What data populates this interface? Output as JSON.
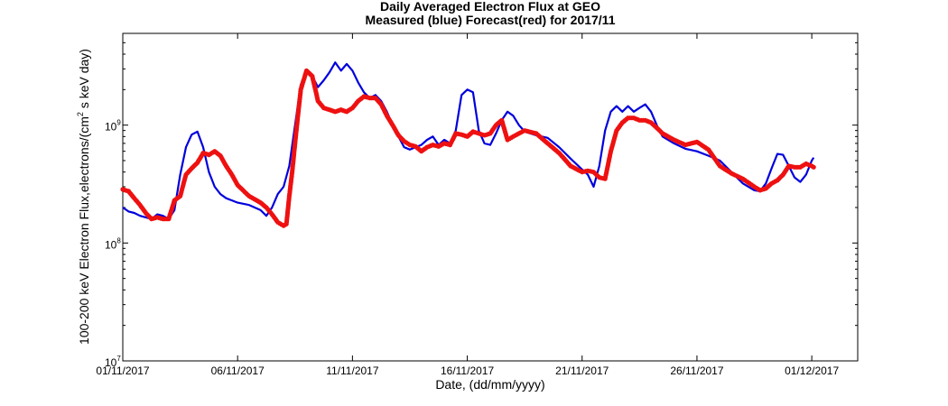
{
  "chart_data": {
    "type": "line",
    "title": "Daily Averaged Electron Flux at GEO",
    "subtitle": "Measured (blue) Forecast(red) for 2017/11",
    "xlabel": "Date, (dd/mm/yyyy)",
    "ylabel_prefix": "100-200 keV Electron Flux,electrons/(cm",
    "ylabel_sup": "2",
    "ylabel_suffix": " s keV day)",
    "y_scale": "log",
    "ylim": [
      10000000.0,
      6000000000.0
    ],
    "xlim": [
      "2017-11-01",
      "2017-12-03"
    ],
    "grid": false,
    "x_ticks": [
      {
        "date": "2017-11-01",
        "label": "01/11/2017"
      },
      {
        "date": "2017-11-06",
        "label": "06/11/2017"
      },
      {
        "date": "2017-11-11",
        "label": "11/11/2017"
      },
      {
        "date": "2017-11-16",
        "label": "16/11/2017"
      },
      {
        "date": "2017-11-21",
        "label": "21/11/2017"
      },
      {
        "date": "2017-11-26",
        "label": "26/11/2017"
      },
      {
        "date": "2017-12-01",
        "label": "01/12/2017"
      }
    ],
    "y_ticks": [
      {
        "value": 10000000.0,
        "base": "10",
        "exp": "7"
      },
      {
        "value": 100000000.0,
        "base": "10",
        "exp": "8"
      },
      {
        "value": 1000000000.0,
        "base": "10",
        "exp": "9"
      }
    ],
    "series": [
      {
        "color": "#0000dd",
        "style": "line",
        "points": [
          [
            "2017-11-01T00:00",
            200000000.0
          ],
          [
            "2017-11-01T06:00",
            185000000.0
          ],
          [
            "2017-11-01T12:00",
            180000000.0
          ],
          [
            "2017-11-01T18:00",
            170000000.0
          ],
          [
            "2017-11-02T00:00",
            165000000.0
          ],
          [
            "2017-11-02T06:00",
            160000000.0
          ],
          [
            "2017-11-02T12:00",
            175000000.0
          ],
          [
            "2017-11-02T18:00",
            170000000.0
          ],
          [
            "2017-11-03T00:00",
            160000000.0
          ],
          [
            "2017-11-03T06:00",
            190000000.0
          ],
          [
            "2017-11-03T12:00",
            380000000.0
          ],
          [
            "2017-11-03T18:00",
            650000000.0
          ],
          [
            "2017-11-04T00:00",
            830000000.0
          ],
          [
            "2017-11-04T06:00",
            880000000.0
          ],
          [
            "2017-11-04T12:00",
            650000000.0
          ],
          [
            "2017-11-04T18:00",
            400000000.0
          ],
          [
            "2017-11-05T00:00",
            300000000.0
          ],
          [
            "2017-11-05T06:00",
            260000000.0
          ],
          [
            "2017-11-05T12:00",
            240000000.0
          ],
          [
            "2017-11-05T18:00",
            230000000.0
          ],
          [
            "2017-11-06T00:00",
            220000000.0
          ],
          [
            "2017-11-06T12:00",
            210000000.0
          ],
          [
            "2017-11-07T00:00",
            190000000.0
          ],
          [
            "2017-11-07T06:00",
            170000000.0
          ],
          [
            "2017-11-07T12:00",
            200000000.0
          ],
          [
            "2017-11-07T18:00",
            260000000.0
          ],
          [
            "2017-11-08T00:00",
            300000000.0
          ],
          [
            "2017-11-08T06:00",
            450000000.0
          ],
          [
            "2017-11-08T12:00",
            1000000000.0
          ],
          [
            "2017-11-08T18:00",
            2200000000.0
          ],
          [
            "2017-11-09T00:00",
            2900000000.0
          ],
          [
            "2017-11-09T06:00",
            2600000000.0
          ],
          [
            "2017-11-09T12:00",
            2100000000.0
          ],
          [
            "2017-11-09T18:00",
            2400000000.0
          ],
          [
            "2017-11-10T00:00",
            2800000000.0
          ],
          [
            "2017-11-10T06:00",
            3400000000.0
          ],
          [
            "2017-11-10T12:00",
            2900000000.0
          ],
          [
            "2017-11-10T18:00",
            3300000000.0
          ],
          [
            "2017-11-11T00:00",
            2900000000.0
          ],
          [
            "2017-11-11T06:00",
            2300000000.0
          ],
          [
            "2017-11-11T12:00",
            1900000000.0
          ],
          [
            "2017-11-11T18:00",
            1700000000.0
          ],
          [
            "2017-11-12T00:00",
            1800000000.0
          ],
          [
            "2017-11-12T06:00",
            1600000000.0
          ],
          [
            "2017-11-12T12:00",
            1300000000.0
          ],
          [
            "2017-11-12T18:00",
            1000000000.0
          ],
          [
            "2017-11-13T00:00",
            800000000.0
          ],
          [
            "2017-11-13T06:00",
            650000000.0
          ],
          [
            "2017-11-13T12:00",
            620000000.0
          ],
          [
            "2017-11-13T18:00",
            650000000.0
          ],
          [
            "2017-11-14T00:00",
            680000000.0
          ],
          [
            "2017-11-14T06:00",
            750000000.0
          ],
          [
            "2017-11-14T12:00",
            800000000.0
          ],
          [
            "2017-11-14T18:00",
            680000000.0
          ],
          [
            "2017-11-15T00:00",
            750000000.0
          ],
          [
            "2017-11-15T06:00",
            700000000.0
          ],
          [
            "2017-11-15T12:00",
            900000000.0
          ],
          [
            "2017-11-15T18:00",
            1800000000.0
          ],
          [
            "2017-11-16T00:00",
            2000000000.0
          ],
          [
            "2017-11-16T06:00",
            1900000000.0
          ],
          [
            "2017-11-16T12:00",
            900000000.0
          ],
          [
            "2017-11-16T18:00",
            700000000.0
          ],
          [
            "2017-11-17T00:00",
            680000000.0
          ],
          [
            "2017-11-17T06:00",
            850000000.0
          ],
          [
            "2017-11-17T12:00",
            1100000000.0
          ],
          [
            "2017-11-17T18:00",
            1300000000.0
          ],
          [
            "2017-11-18T00:00",
            1200000000.0
          ],
          [
            "2017-11-18T06:00",
            1000000000.0
          ],
          [
            "2017-11-18T12:00",
            880000000.0
          ],
          [
            "2017-11-19T00:00",
            820000000.0
          ],
          [
            "2017-11-19T12:00",
            780000000.0
          ],
          [
            "2017-11-20T00:00",
            650000000.0
          ],
          [
            "2017-11-20T12:00",
            520000000.0
          ],
          [
            "2017-11-21T00:00",
            420000000.0
          ],
          [
            "2017-11-21T06:00",
            380000000.0
          ],
          [
            "2017-11-21T12:00",
            300000000.0
          ],
          [
            "2017-11-21T18:00",
            450000000.0
          ],
          [
            "2017-11-22T00:00",
            900000000.0
          ],
          [
            "2017-11-22T06:00",
            1300000000.0
          ],
          [
            "2017-11-22T12:00",
            1450000000.0
          ],
          [
            "2017-11-22T18:00",
            1300000000.0
          ],
          [
            "2017-11-23T00:00",
            1450000000.0
          ],
          [
            "2017-11-23T06:00",
            1300000000.0
          ],
          [
            "2017-11-23T12:00",
            1400000000.0
          ],
          [
            "2017-11-23T18:00",
            1500000000.0
          ],
          [
            "2017-11-24T00:00",
            1300000000.0
          ],
          [
            "2017-11-24T06:00",
            1000000000.0
          ],
          [
            "2017-11-24T12:00",
            800000000.0
          ],
          [
            "2017-11-25T00:00",
            700000000.0
          ],
          [
            "2017-11-25T12:00",
            630000000.0
          ],
          [
            "2017-11-26T00:00",
            600000000.0
          ],
          [
            "2017-11-26T12:00",
            550000000.0
          ],
          [
            "2017-11-27T00:00",
            500000000.0
          ],
          [
            "2017-11-27T12:00",
            400000000.0
          ],
          [
            "2017-11-28T00:00",
            320000000.0
          ],
          [
            "2017-11-28T12:00",
            280000000.0
          ],
          [
            "2017-11-28T18:00",
            275000000.0
          ],
          [
            "2017-11-29T00:00",
            320000000.0
          ],
          [
            "2017-11-29T06:00",
            430000000.0
          ],
          [
            "2017-11-29T12:00",
            570000000.0
          ],
          [
            "2017-11-29T18:00",
            560000000.0
          ],
          [
            "2017-11-30T00:00",
            450000000.0
          ],
          [
            "2017-11-30T06:00",
            360000000.0
          ],
          [
            "2017-11-30T12:00",
            330000000.0
          ],
          [
            "2017-11-30T18:00",
            380000000.0
          ],
          [
            "2017-12-01T00:00",
            500000000.0
          ],
          [
            "2017-12-01T02:00",
            530000000.0
          ]
        ]
      },
      {
        "color": "#ee1111",
        "style": "dots",
        "points": [
          [
            "2017-11-01T00:00",
            285000000.0
          ],
          [
            "2017-11-01T06:00",
            275000000.0
          ],
          [
            "2017-11-01T12:00",
            240000000.0
          ],
          [
            "2017-11-01T18:00",
            210000000.0
          ],
          [
            "2017-11-02T00:00",
            180000000.0
          ],
          [
            "2017-11-02T06:00",
            160000000.0
          ],
          [
            "2017-11-02T12:00",
            165000000.0
          ],
          [
            "2017-11-02T18:00",
            160000000.0
          ],
          [
            "2017-11-03T00:00",
            160000000.0
          ],
          [
            "2017-11-03T06:00",
            230000000.0
          ],
          [
            "2017-11-03T12:00",
            250000000.0
          ],
          [
            "2017-11-03T18:00",
            380000000.0
          ],
          [
            "2017-11-04T00:00",
            430000000.0
          ],
          [
            "2017-11-04T06:00",
            480000000.0
          ],
          [
            "2017-11-04T12:00",
            580000000.0
          ],
          [
            "2017-11-04T18:00",
            560000000.0
          ],
          [
            "2017-11-05T00:00",
            600000000.0
          ],
          [
            "2017-11-05T06:00",
            550000000.0
          ],
          [
            "2017-11-05T12:00",
            450000000.0
          ],
          [
            "2017-11-05T18:00",
            380000000.0
          ],
          [
            "2017-11-06T00:00",
            310000000.0
          ],
          [
            "2017-11-06T12:00",
            250000000.0
          ],
          [
            "2017-11-07T00:00",
            220000000.0
          ],
          [
            "2017-11-07T06:00",
            200000000.0
          ],
          [
            "2017-11-07T12:00",
            175000000.0
          ],
          [
            "2017-11-07T18:00",
            150000000.0
          ],
          [
            "2017-11-08T00:00",
            140000000.0
          ],
          [
            "2017-11-08T03:00",
            145000000.0
          ],
          [
            "2017-11-08T06:00",
            250000000.0
          ],
          [
            "2017-11-08T09:00",
            400000000.0
          ],
          [
            "2017-11-08T12:00",
            700000000.0
          ],
          [
            "2017-11-08T15:00",
            1200000000.0
          ],
          [
            "2017-11-08T18:00",
            2000000000.0
          ],
          [
            "2017-11-09T00:00",
            2900000000.0
          ],
          [
            "2017-11-09T06:00",
            2600000000.0
          ],
          [
            "2017-11-09T12:00",
            1600000000.0
          ],
          [
            "2017-11-09T18:00",
            1400000000.0
          ],
          [
            "2017-11-10T00:00",
            1350000000.0
          ],
          [
            "2017-11-10T06:00",
            1300000000.0
          ],
          [
            "2017-11-10T12:00",
            1350000000.0
          ],
          [
            "2017-11-10T18:00",
            1300000000.0
          ],
          [
            "2017-11-11T00:00",
            1400000000.0
          ],
          [
            "2017-11-11T06:00",
            1600000000.0
          ],
          [
            "2017-11-11T12:00",
            1750000000.0
          ],
          [
            "2017-11-11T18:00",
            1700000000.0
          ],
          [
            "2017-11-12T00:00",
            1700000000.0
          ],
          [
            "2017-11-12T06:00",
            1500000000.0
          ],
          [
            "2017-11-12T12:00",
            1200000000.0
          ],
          [
            "2017-11-12T18:00",
            1000000000.0
          ],
          [
            "2017-11-13T00:00",
            820000000.0
          ],
          [
            "2017-11-13T06:00",
            730000000.0
          ],
          [
            "2017-11-13T12:00",
            680000000.0
          ],
          [
            "2017-11-13T18:00",
            660000000.0
          ],
          [
            "2017-11-14T00:00",
            600000000.0
          ],
          [
            "2017-11-14T06:00",
            650000000.0
          ],
          [
            "2017-11-14T12:00",
            680000000.0
          ],
          [
            "2017-11-14T18:00",
            660000000.0
          ],
          [
            "2017-11-15T00:00",
            700000000.0
          ],
          [
            "2017-11-15T06:00",
            680000000.0
          ],
          [
            "2017-11-15T12:00",
            850000000.0
          ],
          [
            "2017-11-15T18:00",
            830000000.0
          ],
          [
            "2017-11-16T00:00",
            800000000.0
          ],
          [
            "2017-11-16T06:00",
            880000000.0
          ],
          [
            "2017-11-16T12:00",
            850000000.0
          ],
          [
            "2017-11-16T18:00",
            820000000.0
          ],
          [
            "2017-11-17T00:00",
            850000000.0
          ],
          [
            "2017-11-17T06:00",
            1000000000.0
          ],
          [
            "2017-11-17T12:00",
            1100000000.0
          ],
          [
            "2017-11-17T18:00",
            750000000.0
          ],
          [
            "2017-11-18T00:00",
            800000000.0
          ],
          [
            "2017-11-18T06:00",
            850000000.0
          ],
          [
            "2017-11-18T12:00",
            900000000.0
          ],
          [
            "2017-11-19T00:00",
            850000000.0
          ],
          [
            "2017-11-19T12:00",
            700000000.0
          ],
          [
            "2017-11-20T00:00",
            580000000.0
          ],
          [
            "2017-11-20T12:00",
            450000000.0
          ],
          [
            "2017-11-21T00:00",
            400000000.0
          ],
          [
            "2017-11-21T06:00",
            410000000.0
          ],
          [
            "2017-11-21T12:00",
            400000000.0
          ],
          [
            "2017-11-21T18:00",
            360000000.0
          ],
          [
            "2017-11-22T00:00",
            350000000.0
          ],
          [
            "2017-11-22T06:00",
            600000000.0
          ],
          [
            "2017-11-22T12:00",
            900000000.0
          ],
          [
            "2017-11-22T18:00",
            1050000000.0
          ],
          [
            "2017-11-23T00:00",
            1150000000.0
          ],
          [
            "2017-11-23T06:00",
            1150000000.0
          ],
          [
            "2017-11-23T12:00",
            1100000000.0
          ],
          [
            "2017-11-23T18:00",
            1100000000.0
          ],
          [
            "2017-11-24T00:00",
            1050000000.0
          ],
          [
            "2017-11-24T06:00",
            950000000.0
          ],
          [
            "2017-11-24T12:00",
            850000000.0
          ],
          [
            "2017-11-25T00:00",
            750000000.0
          ],
          [
            "2017-11-25T12:00",
            680000000.0
          ],
          [
            "2017-11-26T00:00",
            720000000.0
          ],
          [
            "2017-11-26T12:00",
            620000000.0
          ],
          [
            "2017-11-27T00:00",
            450000000.0
          ],
          [
            "2017-11-27T12:00",
            390000000.0
          ],
          [
            "2017-11-28T00:00",
            350000000.0
          ],
          [
            "2017-11-28T12:00",
            300000000.0
          ],
          [
            "2017-11-28T18:00",
            280000000.0
          ],
          [
            "2017-11-29T00:00",
            290000000.0
          ],
          [
            "2017-11-29T06:00",
            320000000.0
          ],
          [
            "2017-11-29T12:00",
            340000000.0
          ],
          [
            "2017-11-29T18:00",
            380000000.0
          ],
          [
            "2017-11-30T00:00",
            450000000.0
          ],
          [
            "2017-11-30T06:00",
            440000000.0
          ],
          [
            "2017-11-30T12:00",
            440000000.0
          ],
          [
            "2017-11-30T18:00",
            470000000.0
          ],
          [
            "2017-12-01T00:00",
            450000000.0
          ],
          [
            "2017-12-01T02:00",
            440000000.0
          ]
        ]
      }
    ]
  }
}
